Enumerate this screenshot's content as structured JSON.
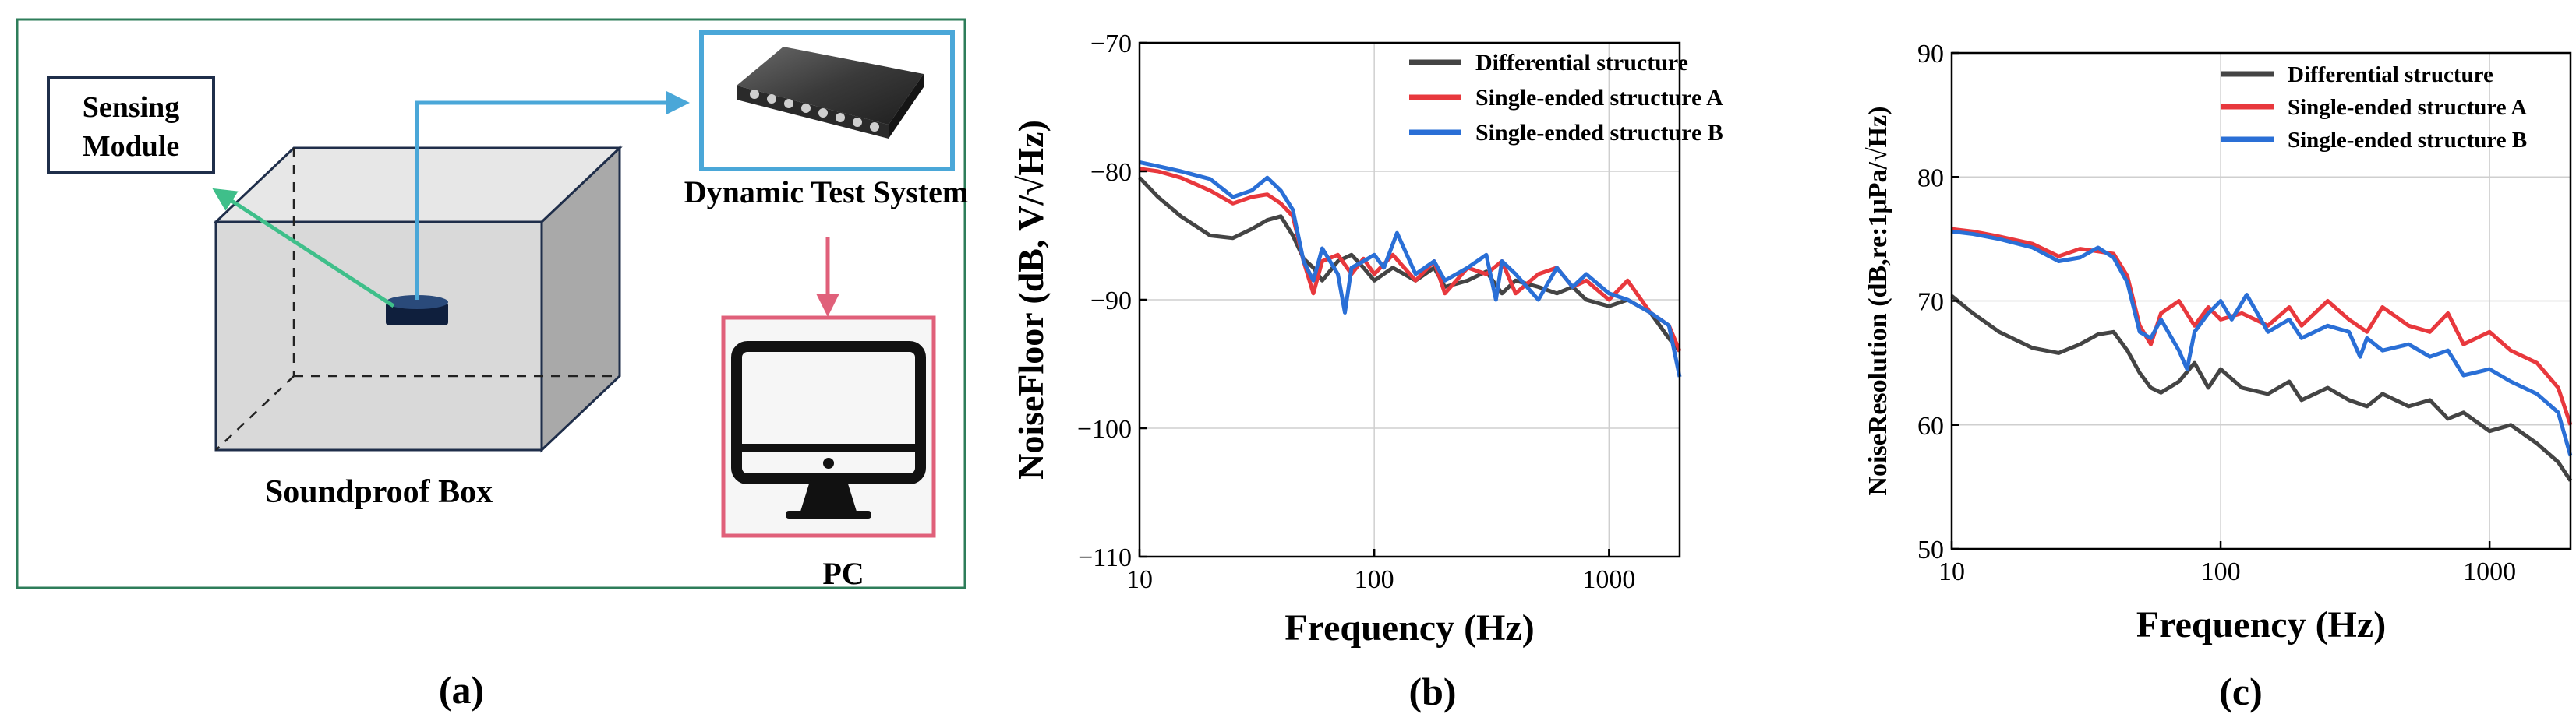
{
  "panel_a": {
    "sensing_module_label": [
      "Sensing",
      "Module"
    ],
    "dynamic_test_system_label": "Dynamic Test System",
    "soundproof_box_label": "Soundproof Box",
    "pc_label": "PC",
    "caption": "(a)",
    "colors": {
      "frame": "#2e7d5a",
      "arrow_green": "#3fbf8a",
      "arrow_blue": "#4aa7d8",
      "arrow_red": "#e0607a",
      "box_fill": "#d9d9d9"
    },
    "icons": [
      "device-icon",
      "monitor-icon",
      "sensor-icon"
    ]
  },
  "chart_data": [
    {
      "type": "line",
      "caption": "(b)",
      "xlabel": "Frequency (Hz)",
      "ylabel": "NoiseFloor (dB, V/√Hz)",
      "xscale": "log",
      "xlim": [
        10,
        2000
      ],
      "ylim": [
        -110,
        -70
      ],
      "xticks": [
        10,
        100,
        1000
      ],
      "xtick_labels": [
        "10",
        "100",
        "1000"
      ],
      "yticks": [
        -110,
        -100,
        -90,
        -80,
        -70
      ],
      "ytick_labels": [
        "−110",
        "−100",
        "−90",
        "−80",
        "−70"
      ],
      "grid": true,
      "legend_position": "top-right",
      "series": [
        {
          "name": "Differential structure",
          "color": "#444444",
          "x": [
            10,
            12,
            15,
            20,
            25,
            30,
            35,
            40,
            45,
            50,
            55,
            60,
            70,
            80,
            90,
            100,
            120,
            150,
            180,
            200,
            250,
            300,
            350,
            400,
            500,
            600,
            700,
            800,
            1000,
            1200,
            1500,
            1800,
            2000
          ],
          "y": [
            -80.5,
            -82,
            -83.5,
            -85,
            -85.2,
            -84.5,
            -83.8,
            -83.5,
            -85,
            -86.8,
            -87.5,
            -88.5,
            -87,
            -86.5,
            -87.5,
            -88.5,
            -87.5,
            -88.5,
            -87.5,
            -89,
            -88.5,
            -87.8,
            -89.5,
            -88.5,
            -89,
            -89.5,
            -89,
            -90,
            -90.5,
            -90,
            -91,
            -93,
            -94
          ]
        },
        {
          "name": "Single-ended structure A",
          "color": "#e8383d",
          "x": [
            10,
            12,
            15,
            20,
            25,
            30,
            35,
            40,
            45,
            50,
            55,
            60,
            70,
            80,
            90,
            100,
            120,
            150,
            180,
            200,
            250,
            300,
            350,
            400,
            500,
            600,
            700,
            800,
            1000,
            1200,
            1500,
            1800,
            2000
          ],
          "y": [
            -79.8,
            -80,
            -80.5,
            -81.5,
            -82.5,
            -82,
            -81.8,
            -82.5,
            -83.5,
            -87,
            -89.5,
            -87,
            -86.5,
            -88,
            -86.8,
            -88,
            -86.5,
            -88.5,
            -87,
            -89.5,
            -87.5,
            -88,
            -87,
            -89.5,
            -88,
            -87.5,
            -89,
            -88.5,
            -90,
            -88.5,
            -91,
            -92,
            -94
          ]
        },
        {
          "name": "Single-ended structure B",
          "color": "#2a6fd6",
          "x": [
            10,
            12,
            15,
            20,
            25,
            30,
            35,
            40,
            45,
            50,
            55,
            60,
            70,
            75,
            80,
            90,
            100,
            110,
            125,
            150,
            180,
            200,
            250,
            300,
            330,
            350,
            400,
            500,
            600,
            700,
            800,
            1000,
            1200,
            1500,
            1800,
            2000
          ],
          "y": [
            -79.3,
            -79.6,
            -80,
            -80.6,
            -82,
            -81.5,
            -80.5,
            -81.5,
            -83,
            -87,
            -88.5,
            -86,
            -88,
            -91,
            -87.5,
            -87,
            -86.5,
            -87.5,
            -84.8,
            -88,
            -87,
            -88.5,
            -87.5,
            -86.5,
            -90,
            -87,
            -88,
            -90,
            -87.5,
            -89,
            -88,
            -89.5,
            -90,
            -91,
            -92,
            -96
          ]
        }
      ]
    },
    {
      "type": "line",
      "caption": "(c)",
      "xlabel": "Frequency (Hz)",
      "ylabel": "NoiseResolution (dB,re:1μPa/√Hz)",
      "xscale": "log",
      "xlim": [
        10,
        2000
      ],
      "ylim": [
        50,
        90
      ],
      "xticks": [
        10,
        100,
        1000
      ],
      "xtick_labels": [
        "10",
        "100",
        "1000"
      ],
      "yticks": [
        50,
        60,
        70,
        80,
        90
      ],
      "ytick_labels": [
        "50",
        "60",
        "70",
        "80",
        "90"
      ],
      "grid": true,
      "legend_position": "top-right",
      "series": [
        {
          "name": "Differential structure",
          "color": "#444444",
          "x": [
            10,
            12,
            15,
            20,
            25,
            30,
            35,
            40,
            45,
            50,
            55,
            60,
            70,
            80,
            90,
            100,
            120,
            150,
            180,
            200,
            250,
            300,
            350,
            400,
            500,
            600,
            700,
            800,
            1000,
            1200,
            1500,
            1800,
            2000
          ],
          "y": [
            70.4,
            69,
            67.5,
            66.2,
            65.8,
            66.5,
            67.3,
            67.5,
            66,
            64.2,
            63,
            62.6,
            63.5,
            65,
            63,
            64.5,
            63,
            62.5,
            63.5,
            62,
            63,
            62,
            61.5,
            62.5,
            61.5,
            62,
            60.5,
            61,
            59.5,
            60,
            58.5,
            57,
            55.5
          ]
        },
        {
          "name": "Single-ended structure A",
          "color": "#e8383d",
          "x": [
            10,
            12,
            15,
            20,
            25,
            30,
            35,
            40,
            45,
            50,
            55,
            60,
            70,
            80,
            90,
            100,
            120,
            150,
            180,
            200,
            250,
            300,
            350,
            400,
            500,
            600,
            700,
            800,
            1000,
            1200,
            1500,
            1800,
            2000
          ],
          "y": [
            75.8,
            75.6,
            75.2,
            74.6,
            73.6,
            74.2,
            74,
            73.8,
            72,
            68,
            66.5,
            69,
            70,
            68,
            69.5,
            68.5,
            69,
            68,
            69.5,
            68,
            70,
            68.5,
            67.5,
            69.5,
            68,
            67.5,
            69,
            66.5,
            67.5,
            66,
            65,
            63,
            60
          ]
        },
        {
          "name": "Single-ended structure B",
          "color": "#2a6fd6",
          "x": [
            10,
            12,
            15,
            20,
            25,
            30,
            35,
            40,
            45,
            50,
            55,
            60,
            70,
            75,
            80,
            90,
            100,
            110,
            125,
            150,
            180,
            200,
            250,
            300,
            330,
            350,
            400,
            500,
            600,
            700,
            800,
            1000,
            1200,
            1500,
            1800,
            2000
          ],
          "y": [
            75.6,
            75.4,
            75,
            74.3,
            73.2,
            73.5,
            74.3,
            73.5,
            71.5,
            67.5,
            67,
            68.5,
            66,
            64.5,
            67.5,
            69,
            70,
            68.5,
            70.5,
            67.5,
            68.5,
            67,
            68,
            67.5,
            65.5,
            67,
            66,
            66.5,
            65.5,
            66,
            64,
            64.5,
            63.5,
            62.5,
            61,
            57.5
          ]
        }
      ]
    }
  ]
}
